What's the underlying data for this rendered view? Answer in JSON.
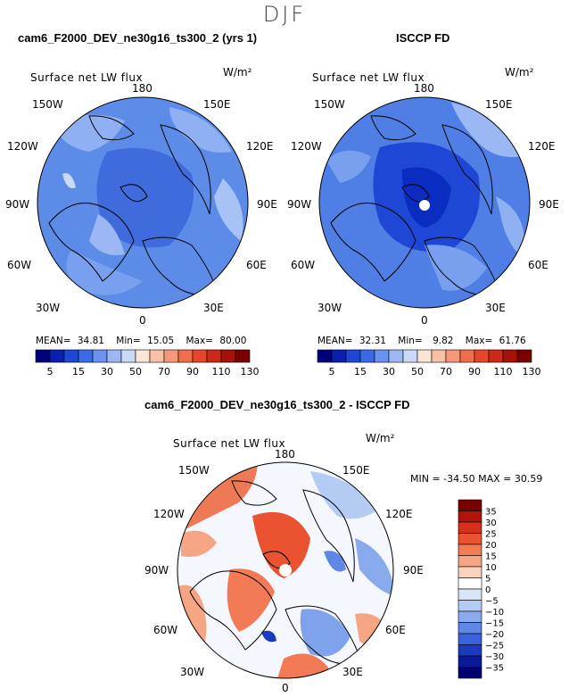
{
  "season": "DJF",
  "panels": {
    "left": {
      "title": "cam6_F2000_DEV_ne30g16_ts300_2 (yrs 1)",
      "map_title": "Surface net LW flux",
      "units": "W/m²",
      "stats": {
        "mean_label": "MEAN=",
        "mean": "34.81",
        "min_label": "Min=",
        "min": "15.05",
        "max_label": "Max=",
        "max": "80.00"
      }
    },
    "right": {
      "title": "ISCCP FD",
      "map_title": "Surface net LW flux",
      "units": "W/m²",
      "stats": {
        "mean_label": "MEAN=",
        "mean": "32.31",
        "min_label": "Min=",
        "min": "9.82",
        "max_label": "Max=",
        "max": "61.76"
      }
    },
    "diff": {
      "title": "cam6_F2000_DEV_ne30g16_ts300_2 - ISCCP FD",
      "map_title": "Surface net LW flux",
      "units": "W/m²",
      "stats": "MIN = -34.50  MAX =  30.59"
    }
  },
  "lon_labels": {
    "top": "180",
    "bottom": "0",
    "e150": "150E",
    "e120": "120E",
    "e90": "90E",
    "e60": "60E",
    "e30": "30E",
    "w150": "150W",
    "w120": "120W",
    "w90": "90W",
    "w60": "60W",
    "w30": "30W"
  },
  "colorbar_abs": {
    "labels": [
      "5",
      "15",
      "30",
      "50",
      "70",
      "90",
      "110",
      "130"
    ],
    "colors": [
      "#00007a",
      "#0a1fb0",
      "#1f47d6",
      "#3c6ae6",
      "#6a92ee",
      "#9bb8f4",
      "#c8daf8",
      "#fbe6d6",
      "#f8c0a4",
      "#f4977a",
      "#ef6e4e",
      "#e8462c",
      "#cc2a16",
      "#a51208",
      "#7a0000"
    ]
  },
  "colorbar_diff": {
    "labels": [
      "35",
      "30",
      "25",
      "20",
      "15",
      "10",
      "5",
      "0",
      "−5",
      "−10",
      "−15",
      "−20",
      "−25",
      "−30",
      "−35"
    ],
    "colors": [
      "#7a0000",
      "#b01508",
      "#d6301a",
      "#ea5230",
      "#f27a54",
      "#f6a584",
      "#fbd3bd",
      "#ffffff",
      "#d8e4f8",
      "#b4cbf4",
      "#8aaaee",
      "#5f87e6",
      "#3a62da",
      "#1a3bc0",
      "#0a1a96",
      "#000070"
    ]
  },
  "colors": {
    "ocean_model": "#5c8be8",
    "arctic_model": "#3f6bdc",
    "ocean_obs": "#4f7ee4",
    "arctic_obs": "#1f47d6",
    "diff_base": "#f4f7fd",
    "diff_warm": "#ee7a55",
    "diff_cool": "#7fa2ec"
  }
}
